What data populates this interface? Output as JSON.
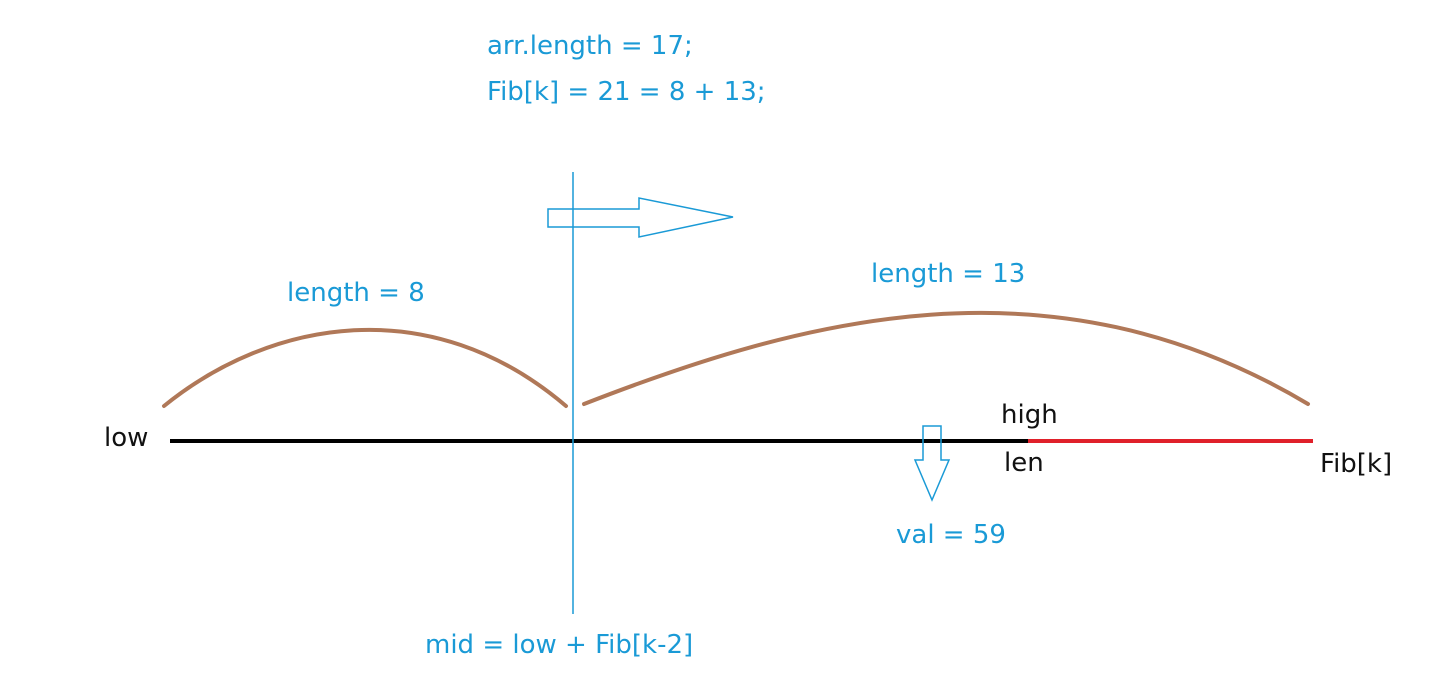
{
  "header": {
    "line1": "arr.length = 17;",
    "line2": "Fib[k] = 21 = 8 + 13;"
  },
  "segments": {
    "left_label": "length = 8",
    "right_label": "length = 13"
  },
  "axis": {
    "low_label": "low",
    "high_label": "high",
    "len_label": "len",
    "end_label": "Fib[k]"
  },
  "search": {
    "value_label": "val = 59"
  },
  "split": {
    "mid_label": "mid = low + Fib[k-2]"
  },
  "colors": {
    "annotation": "#1a9ad6",
    "axis_line": "#000000",
    "padding_line": "#e0202a",
    "arc": "#b07858",
    "text_dark": "#111111"
  }
}
